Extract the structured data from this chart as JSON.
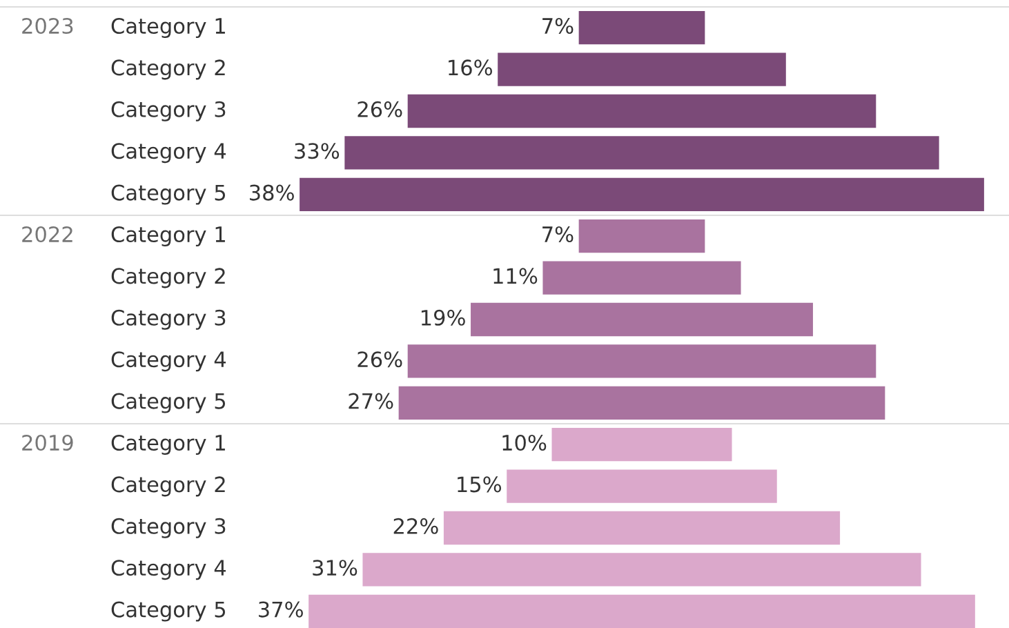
{
  "chart_data": [
    {
      "type": "other",
      "title": "2023",
      "categories": [
        "Category 1",
        "Category 2",
        "Category 3",
        "Category 4",
        "Category 5"
      ],
      "values": [
        7,
        16,
        26,
        33,
        38
      ],
      "value_labels": [
        "7%",
        "16%",
        "26%",
        "33%",
        "38%"
      ],
      "color": "#7b4a78"
    },
    {
      "type": "other",
      "title": "2022",
      "categories": [
        "Category 1",
        "Category 2",
        "Category 3",
        "Category 4",
        "Category 5"
      ],
      "values": [
        7,
        11,
        19,
        26,
        27
      ],
      "value_labels": [
        "7%",
        "11%",
        "19%",
        "26%",
        "27%"
      ],
      "color": "#a9739f"
    },
    {
      "type": "other",
      "title": "2019",
      "categories": [
        "Category 1",
        "Category 2",
        "Category 3",
        "Category 4",
        "Category 5"
      ],
      "values": [
        10,
        15,
        22,
        31,
        37
      ],
      "value_labels": [
        "10%",
        "15%",
        "22%",
        "31%",
        "37%"
      ],
      "color": "#dba8cb"
    }
  ]
}
